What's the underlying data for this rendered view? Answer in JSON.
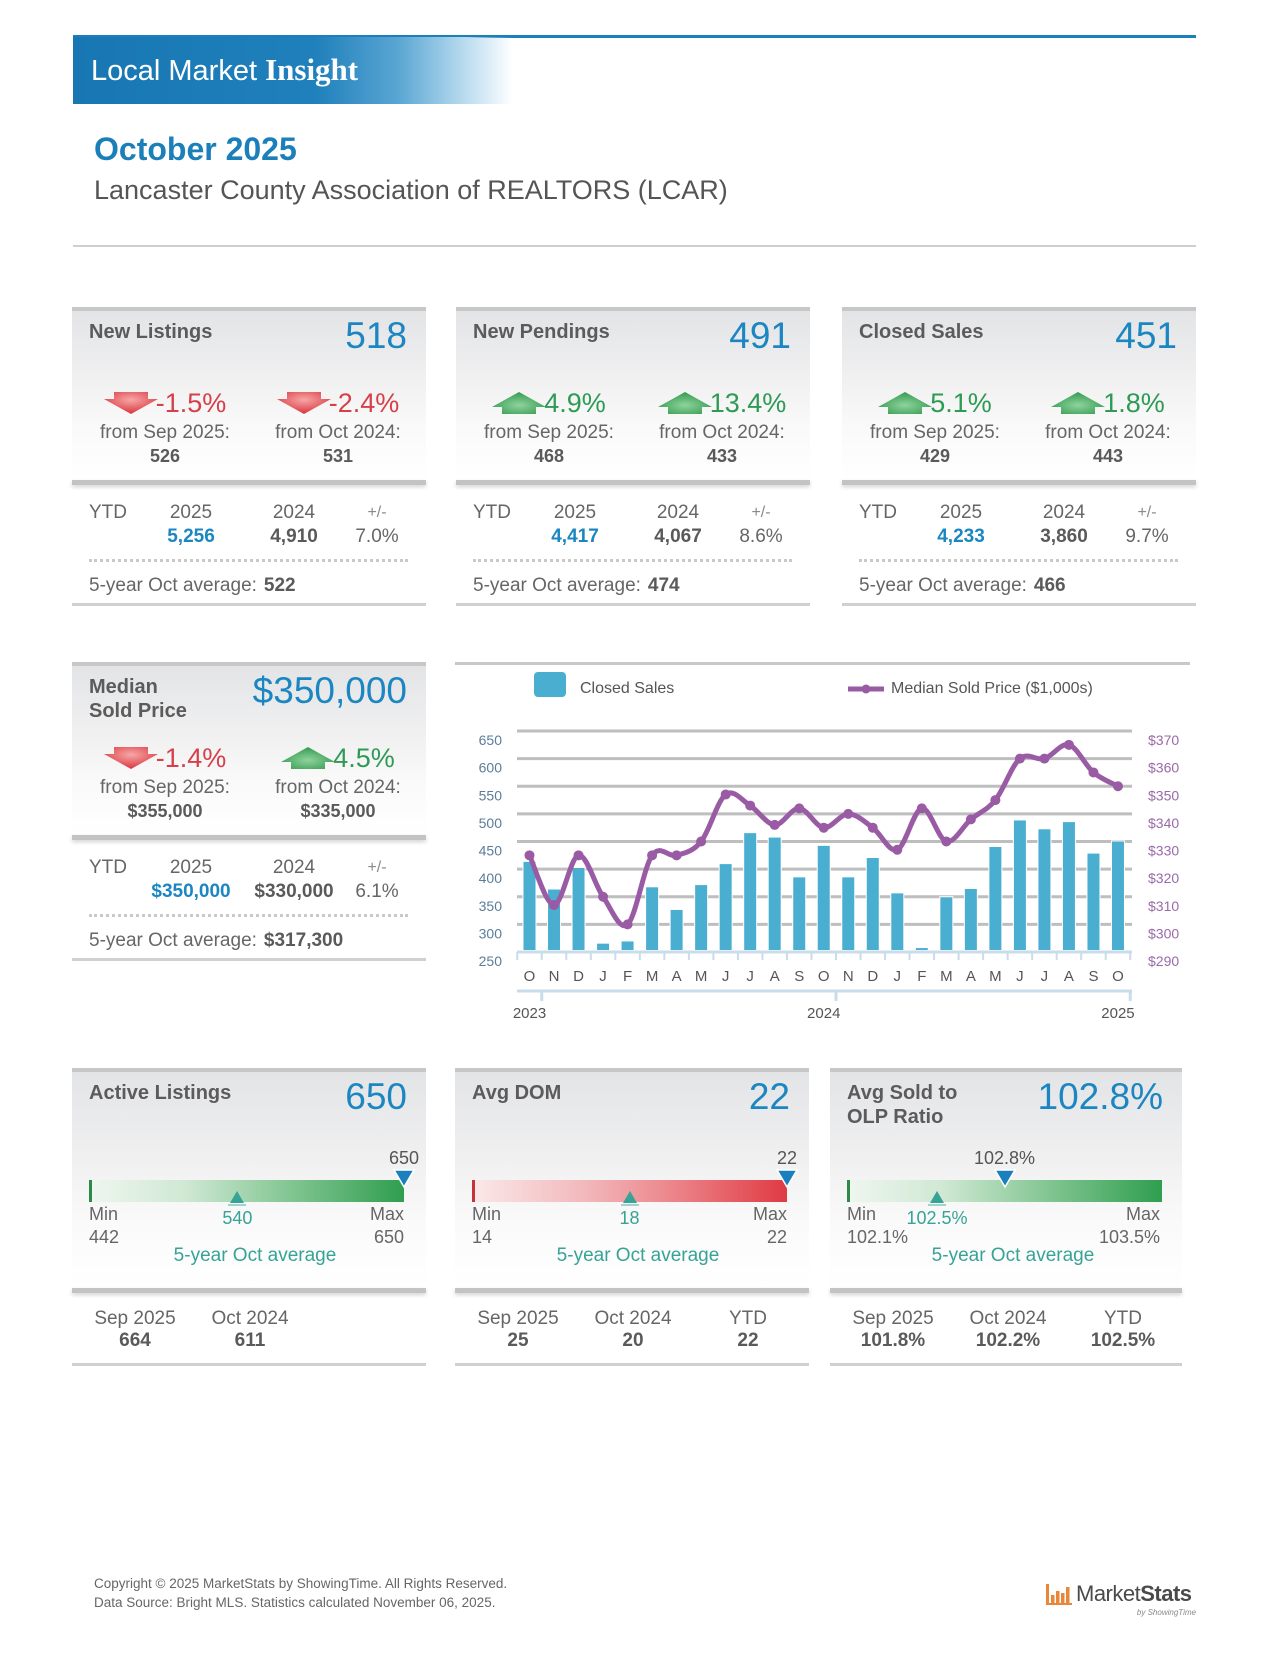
{
  "theme": {
    "brand_blue": "#1b7fba",
    "value_blue": "#1b86c2",
    "up_green": "#2e9a55",
    "down_red": "#d6404a",
    "bar_blue": "#4aaed0",
    "line_purple": "#9a5ba5",
    "average_teal": "#36a396",
    "marker_blue": "#1a7fbf"
  },
  "header": {
    "brand_light": "Local Market",
    "brand_bold": "Insight"
  },
  "report": {
    "period": "October 2025",
    "association": "Lancaster County Association of REALTORS (LCAR)"
  },
  "stat_cards": [
    {
      "title_lines": [
        "New Listings"
      ],
      "value": "518",
      "changes": [
        {
          "direction": "down",
          "pct": "-1.5%",
          "from_label": "from Sep 2025:",
          "from_value": "526"
        },
        {
          "direction": "down",
          "pct": "-2.4%",
          "from_label": "from Oct 2024:",
          "from_value": "531"
        }
      ],
      "ytd": {
        "label": "YTD",
        "current_year": "2025",
        "current_value": "5,256",
        "prior_year": "2024",
        "prior_value": "4,910",
        "change_label": "+/-",
        "change_value": "7.0%"
      },
      "five_year": {
        "label": "5-year Oct average:",
        "value": "522"
      }
    },
    {
      "title_lines": [
        "New Pendings"
      ],
      "value": "491",
      "changes": [
        {
          "direction": "up",
          "pct": "4.9%",
          "from_label": "from Sep 2025:",
          "from_value": "468"
        },
        {
          "direction": "up",
          "pct": "13.4%",
          "from_label": "from Oct 2024:",
          "from_value": "433"
        }
      ],
      "ytd": {
        "label": "YTD",
        "current_year": "2025",
        "current_value": "4,417",
        "prior_year": "2024",
        "prior_value": "4,067",
        "change_label": "+/-",
        "change_value": "8.6%"
      },
      "five_year": {
        "label": "5-year Oct average:",
        "value": "474"
      }
    },
    {
      "title_lines": [
        "Closed Sales"
      ],
      "value": "451",
      "changes": [
        {
          "direction": "up",
          "pct": "5.1%",
          "from_label": "from Sep 2025:",
          "from_value": "429"
        },
        {
          "direction": "up",
          "pct": "1.8%",
          "from_label": "from Oct 2024:",
          "from_value": "443"
        }
      ],
      "ytd": {
        "label": "YTD",
        "current_year": "2025",
        "current_value": "4,233",
        "prior_year": "2024",
        "prior_value": "3,860",
        "change_label": "+/-",
        "change_value": "9.7%"
      },
      "five_year": {
        "label": "5-year Oct average:",
        "value": "466"
      }
    },
    {
      "title_lines": [
        "Median",
        "Sold Price"
      ],
      "value": "$350,000",
      "changes": [
        {
          "direction": "down",
          "pct": "-1.4%",
          "from_label": "from Sep 2025:",
          "from_value": "$355,000"
        },
        {
          "direction": "up",
          "pct": "4.5%",
          "from_label": "from Oct 2024:",
          "from_value": "$335,000"
        }
      ],
      "ytd": {
        "label": "YTD",
        "current_year": "2025",
        "current_value": "$350,000",
        "prior_year": "2024",
        "prior_value": "$330,000",
        "change_label": "+/-",
        "change_value": "6.1%"
      },
      "five_year": {
        "label": "5-year Oct average:",
        "value": "$317,300"
      }
    }
  ],
  "gauge_cards": [
    {
      "title_lines": [
        "Active Listings"
      ],
      "value": "650",
      "gauge": {
        "tone": "green",
        "min": 442,
        "max": 650,
        "current": 650,
        "average": 540,
        "min_label": "Min",
        "max_label": "Max",
        "min_display": "442",
        "max_display": "650",
        "current_display": "650",
        "average_display": "540",
        "average_caption": "5-year Oct average"
      },
      "history": [
        {
          "label": "Sep 2025",
          "value": "664"
        },
        {
          "label": "Oct 2024",
          "value": "611"
        }
      ]
    },
    {
      "title_lines": [
        "Avg DOM"
      ],
      "value": "22",
      "gauge": {
        "tone": "red",
        "min": 14,
        "max": 22,
        "current": 22,
        "average": 18,
        "min_label": "Min",
        "max_label": "Max",
        "min_display": "14",
        "max_display": "22",
        "current_display": "22",
        "average_display": "18",
        "average_caption": "5-year Oct average"
      },
      "history": [
        {
          "label": "Sep 2025",
          "value": "25"
        },
        {
          "label": "Oct 2024",
          "value": "20"
        },
        {
          "label": "YTD",
          "value": "22"
        }
      ]
    },
    {
      "title_lines": [
        "Avg Sold to",
        "OLP Ratio"
      ],
      "value": "102.8%",
      "gauge": {
        "tone": "green",
        "min": 102.1,
        "max": 103.5,
        "current": 102.8,
        "average": 102.5,
        "min_label": "Min",
        "max_label": "Max",
        "min_display": "102.1%",
        "max_display": "103.5%",
        "current_display": "102.8%",
        "average_display": "102.5%",
        "average_caption": "5-year Oct average"
      },
      "history": [
        {
          "label": "Sep 2025",
          "value": "101.8%"
        },
        {
          "label": "Oct 2024",
          "value": "102.2%"
        },
        {
          "label": "YTD",
          "value": "102.5%"
        }
      ]
    }
  ],
  "chart_data": {
    "type": "bar",
    "title": "",
    "legend_position": "top",
    "legend": [
      {
        "name": "Closed Sales",
        "kind": "bar"
      },
      {
        "name": "Median Sold Price ($1,000s)",
        "kind": "line"
      }
    ],
    "categories": [
      "O",
      "N",
      "D",
      "J",
      "F",
      "M",
      "A",
      "M",
      "J",
      "J",
      "A",
      "S",
      "O",
      "N",
      "D",
      "J",
      "F",
      "M",
      "A",
      "M",
      "J",
      "J",
      "A",
      "S",
      "O"
    ],
    "year_labels": [
      {
        "label": "2023",
        "index": 0
      },
      {
        "label": "2024",
        "index": 12
      },
      {
        "label": "2025",
        "index": 24
      }
    ],
    "series": [
      {
        "name": "Closed Sales",
        "type": "bar",
        "axis": "left",
        "color": "#4aaed0",
        "values": [
          414,
          364,
          403,
          266,
          270,
          368,
          327,
          372,
          410,
          466,
          458,
          386,
          443,
          386,
          421,
          357,
          258,
          350,
          365,
          441,
          489,
          473,
          486,
          429,
          451
        ]
      },
      {
        "name": "Median Sold Price ($1,000s)",
        "type": "line",
        "axis": "right",
        "color": "#9a5ba5",
        "values": [
          325,
          307,
          325,
          310,
          300,
          325,
          325,
          330,
          347,
          343,
          336,
          342,
          335,
          340,
          335,
          327,
          342,
          330,
          338,
          345,
          360,
          360,
          365,
          355,
          350
        ]
      }
    ],
    "y_left": {
      "min": 250,
      "max": 650,
      "ticks": [
        250,
        300,
        350,
        400,
        450,
        500,
        550,
        600,
        650
      ],
      "tick_labels": [
        "250",
        "300",
        "350",
        "400",
        "450",
        "500",
        "550",
        "600",
        "650"
      ]
    },
    "y_right": {
      "min": 290,
      "max": 370,
      "ticks": [
        290,
        300,
        310,
        320,
        330,
        340,
        350,
        360,
        370
      ],
      "tick_labels": [
        "$290",
        "$300",
        "$310",
        "$320",
        "$330",
        "$340",
        "$350",
        "$360",
        "$370"
      ]
    },
    "xlabel": "",
    "ylabel": "",
    "grid": true
  },
  "footer": {
    "copyright": "Copyright © 2025 MarketStats by ShowingTime. All Rights Reserved.",
    "source": "Data Source: Bright MLS. Statistics calculated November 06, 2025.",
    "logo_main": "Market",
    "logo_bold": "Stats",
    "logo_sub": "by ShowingTime"
  }
}
